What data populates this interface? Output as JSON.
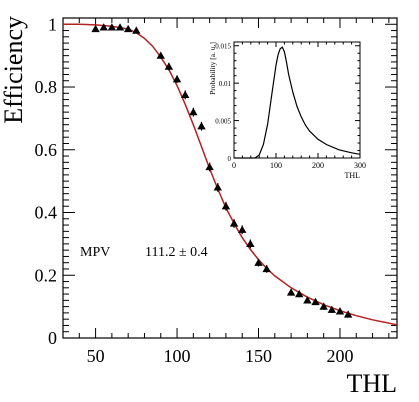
{
  "chart_data": [
    {
      "type": "scatter",
      "ylabel": "Efficiency",
      "xlabel": "THL",
      "xlim": [
        30,
        235
      ],
      "ylim": [
        0,
        1.02
      ],
      "xticks": [
        50,
        100,
        150,
        200
      ],
      "yticks": [
        0,
        0.2,
        0.4,
        0.6,
        0.8,
        1
      ],
      "ytick_labels": [
        "0",
        "0.2",
        "0.4",
        "0.6",
        "0.8",
        "1"
      ],
      "grid": false,
      "series": [
        {
          "marker": "triangle",
          "color": "#000000",
          "x": [
            50,
            55,
            60,
            65,
            70,
            75,
            90,
            95,
            100,
            105,
            110,
            115,
            120,
            125,
            130,
            135,
            140,
            145,
            150,
            155,
            170,
            175,
            180,
            185,
            190,
            195,
            200,
            205
          ],
          "y": [
            0.985,
            0.99,
            0.99,
            0.99,
            0.985,
            0.98,
            0.9,
            0.865,
            0.825,
            0.775,
            0.72,
            0.675,
            0.545,
            0.48,
            0.42,
            0.365,
            0.345,
            0.3,
            0.24,
            0.22,
            0.145,
            0.14,
            0.12,
            0.115,
            0.1,
            0.09,
            0.085,
            0.075
          ],
          "yerr": [
            0.008,
            0.008,
            0.008,
            0.008,
            0.008,
            0.008,
            0.01,
            0.012,
            0.012,
            0.014,
            0.014,
            0.014,
            0.014,
            0.014,
            0.014,
            0.014,
            0.014,
            0.014,
            0.012,
            0.012,
            0.01,
            0.01,
            0.01,
            0.01,
            0.01,
            0.01,
            0.01,
            0.01
          ]
        },
        {
          "type": "line",
          "color": "#b22222",
          "x": [
            30,
            40,
            50,
            60,
            70,
            75,
            80,
            85,
            90,
            95,
            100,
            105,
            110,
            115,
            120,
            125,
            130,
            135,
            140,
            145,
            150,
            155,
            160,
            170,
            180,
            190,
            200,
            210,
            220,
            235
          ],
          "y": [
            1.0,
            1.0,
            0.998,
            0.994,
            0.985,
            0.973,
            0.955,
            0.93,
            0.895,
            0.855,
            0.805,
            0.745,
            0.68,
            0.61,
            0.54,
            0.475,
            0.415,
            0.365,
            0.32,
            0.282,
            0.25,
            0.222,
            0.198,
            0.16,
            0.13,
            0.106,
            0.087,
            0.071,
            0.058,
            0.042
          ]
        }
      ],
      "annotations": [
        {
          "label": "MPV",
          "value": "111.2 ± 0.4"
        }
      ]
    },
    {
      "type": "line",
      "xlabel": "THL",
      "ylabel": "Probability [a. u.]",
      "xlim": [
        0,
        300
      ],
      "ylim": [
        0,
        0.0155
      ],
      "xticks": [
        0,
        100,
        200,
        300
      ],
      "yticks": [
        0,
        0.005,
        0.01,
        0.015
      ],
      "ytick_labels": [
        "0",
        "0.005",
        "0.01",
        "0.015"
      ],
      "grid": false,
      "series": [
        {
          "color": "#000000",
          "x": [
            0,
            50,
            60,
            70,
            80,
            90,
            100,
            105,
            110,
            115,
            120,
            125,
            130,
            140,
            150,
            160,
            170,
            180,
            200,
            220,
            250,
            280,
            300
          ],
          "y": [
            0,
            0.0,
            0.0004,
            0.0018,
            0.0045,
            0.0085,
            0.0124,
            0.0138,
            0.0146,
            0.0148,
            0.0142,
            0.0128,
            0.0112,
            0.0088,
            0.0069,
            0.0055,
            0.0044,
            0.0036,
            0.0025,
            0.0018,
            0.0011,
            0.0007,
            0.0005
          ]
        }
      ]
    }
  ]
}
